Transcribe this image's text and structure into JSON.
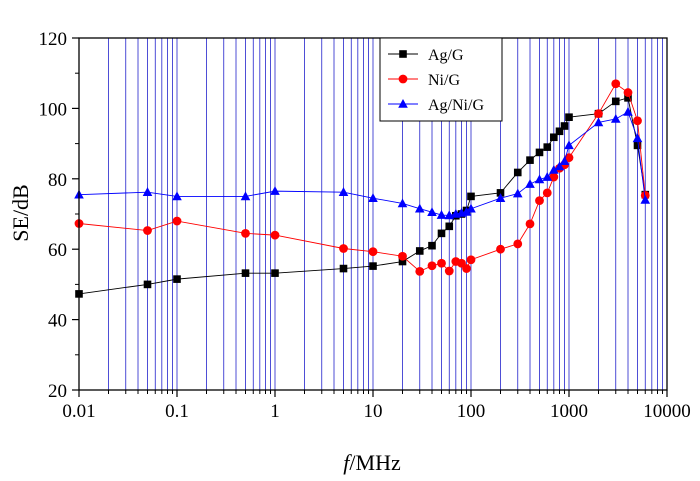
{
  "chart_data": {
    "type": "line",
    "title": "",
    "xlabel_italic": "f",
    "xlabel_rest": "/MHz",
    "ylabel": "SE/dB",
    "xscale": "log",
    "xlim": [
      0.01,
      10000
    ],
    "ylim": [
      20,
      120
    ],
    "xticks": [
      0.01,
      0.1,
      1,
      10,
      100,
      1000,
      10000
    ],
    "xtick_labels": [
      "0.01",
      "0.1",
      "1",
      "10",
      "100",
      "1000",
      "10000"
    ],
    "yticks": [
      20,
      40,
      60,
      80,
      100,
      120
    ],
    "ytick_labels": [
      "20",
      "40",
      "60",
      "80",
      "100",
      "120"
    ],
    "grid": "vertical minor lines (blue)",
    "legend_position": "top-right",
    "series": [
      {
        "name": "Ag/G",
        "color": "#000000",
        "marker": "square",
        "x": [
          0.01,
          0.05,
          0.1,
          0.5,
          1,
          5,
          10,
          20,
          30,
          40,
          50,
          60,
          70,
          80,
          90,
          100,
          200,
          300,
          400,
          500,
          600,
          700,
          800,
          900,
          1000,
          2000,
          3000,
          4000,
          5000,
          6000
        ],
        "y": [
          47.3,
          50,
          51.5,
          53.2,
          53.2,
          54.5,
          55.2,
          56.5,
          59.5,
          61,
          64.5,
          66.5,
          69.5,
          70,
          71,
          75,
          76,
          81.8,
          85.3,
          87.5,
          89,
          91.8,
          93.5,
          95,
          97.5,
          98.5,
          102,
          103,
          89.5,
          75.5
        ]
      },
      {
        "name": "Ni/G",
        "color": "#ff0000",
        "marker": "circle",
        "x": [
          0.01,
          0.05,
          0.1,
          0.5,
          1,
          5,
          10,
          20,
          30,
          40,
          50,
          60,
          70,
          80,
          90,
          100,
          200,
          300,
          400,
          500,
          600,
          700,
          800,
          900,
          1000,
          2000,
          3000,
          4000,
          5000,
          6000
        ],
        "y": [
          67.3,
          65.3,
          68,
          64.5,
          64,
          60.2,
          59.3,
          58,
          53.7,
          55.3,
          56,
          53.8,
          56.5,
          56,
          54.5,
          57,
          60,
          61.5,
          67.2,
          73.8,
          76,
          80.5,
          83,
          84,
          86,
          98.5,
          107,
          104.5,
          96.5,
          75.3
        ]
      },
      {
        "name": "Ag/Ni/G",
        "color": "#0000ff",
        "marker": "triangle",
        "x": [
          0.01,
          0.05,
          0.1,
          0.5,
          1,
          5,
          10,
          20,
          30,
          40,
          50,
          60,
          70,
          80,
          90,
          100,
          200,
          300,
          400,
          500,
          600,
          700,
          800,
          900,
          1000,
          2000,
          3000,
          4000,
          5000,
          6000
        ],
        "y": [
          75.5,
          76.2,
          75,
          75,
          76.5,
          76.2,
          74.5,
          73,
          71.5,
          70.5,
          69.7,
          69.6,
          70,
          70.3,
          70.6,
          71.5,
          74.5,
          75.8,
          78.5,
          79.8,
          80.5,
          82.5,
          83.5,
          85,
          89.5,
          96,
          97,
          99,
          91.5,
          74
        ]
      }
    ]
  }
}
